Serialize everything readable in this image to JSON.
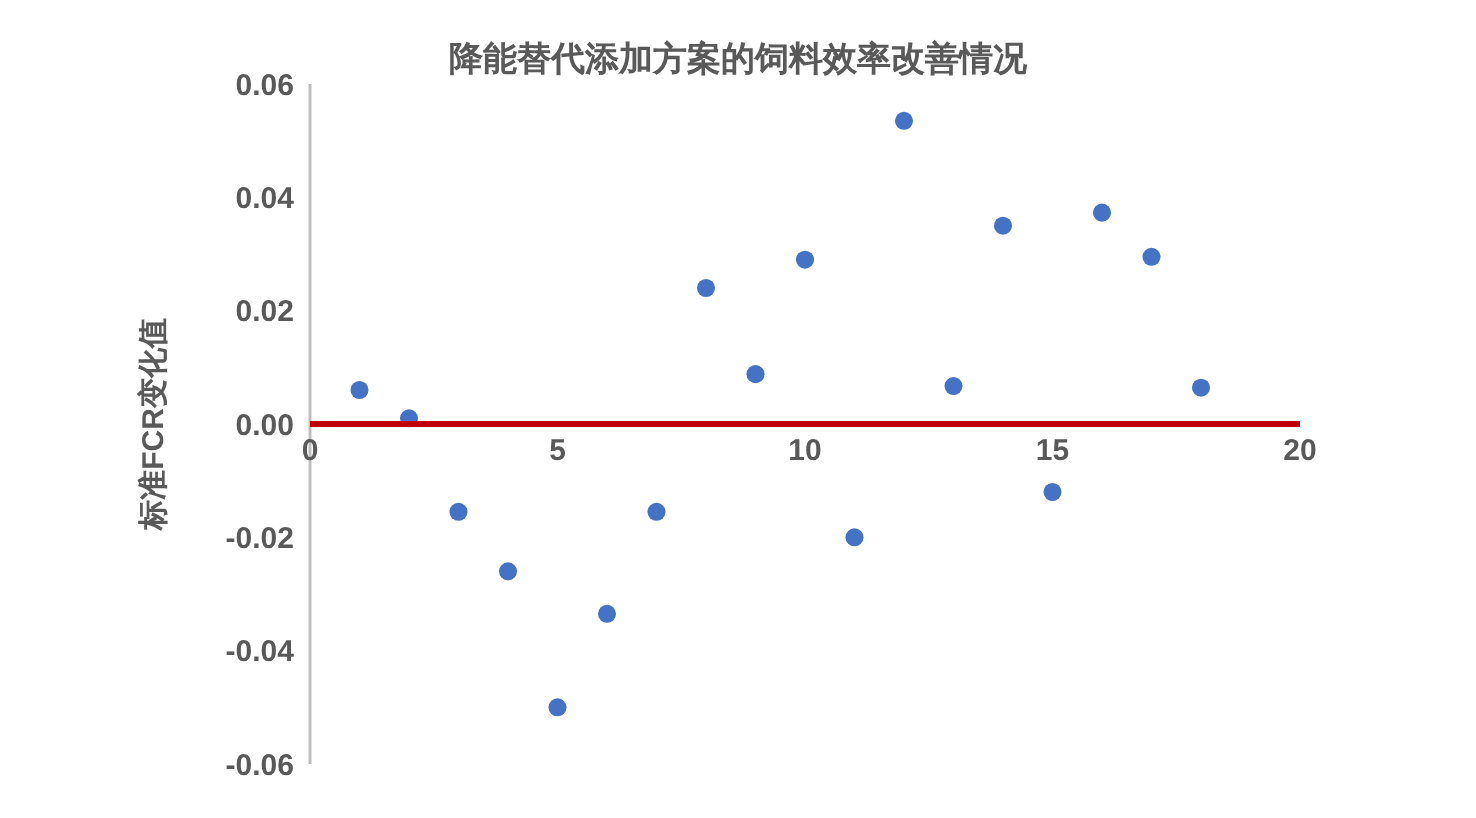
{
  "chart_data": {
    "type": "scatter",
    "title": "降能替代添加方案的饲料效率改善情况",
    "ylabel": "标准FCR变化值",
    "x": [
      1,
      2,
      3,
      4,
      5,
      6,
      7,
      8,
      9,
      10,
      11,
      12,
      13,
      14,
      15,
      16,
      17,
      18
    ],
    "series": [
      {
        "color": "#4472c4",
        "values": [
          0.006,
          0.001,
          -0.0155,
          -0.026,
          -0.05,
          -0.0335,
          -0.0155,
          0.024,
          0.0088,
          0.029,
          -0.02,
          0.0535,
          0.0067,
          0.035,
          -0.012,
          0.0373,
          0.0295,
          0.0064
        ]
      }
    ],
    "xlim": [
      0,
      20
    ],
    "xticks": [
      0,
      5,
      10,
      15,
      20
    ],
    "ylim": [
      -0.06,
      0.06
    ],
    "yticks": [
      {
        "value": -0.06,
        "label": "-0.06"
      },
      {
        "value": -0.04,
        "label": "-0.04"
      },
      {
        "value": -0.02,
        "label": "-0.02"
      },
      {
        "value": 0,
        "label": "0.00"
      },
      {
        "value": 0.02,
        "label": "0.02"
      },
      {
        "value": 0.04,
        "label": "0.04"
      },
      {
        "value": 0.06,
        "label": "0.06"
      }
    ],
    "marker": "circle",
    "grid": false
  }
}
